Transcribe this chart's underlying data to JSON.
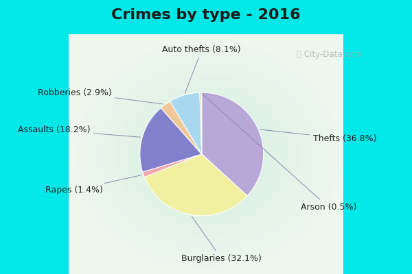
{
  "title": "Crimes by type - 2016",
  "labels": [
    "Thefts",
    "Burglaries",
    "Rapes",
    "Assaults",
    "Robberies",
    "Auto thefts",
    "Arson"
  ],
  "percentages": [
    36.8,
    32.1,
    1.4,
    18.2,
    2.9,
    8.1,
    0.5
  ],
  "colors": [
    "#b8a8d8",
    "#f0f0a0",
    "#f0a8b0",
    "#8080cc",
    "#f0c898",
    "#a8d8f0",
    "#d8d8c0"
  ],
  "background_top": "#00e8e8",
  "background_main_color": "#c8e8d8",
  "title_fontsize": 16,
  "label_fontsize": 9,
  "watermark": "City-Data.com"
}
